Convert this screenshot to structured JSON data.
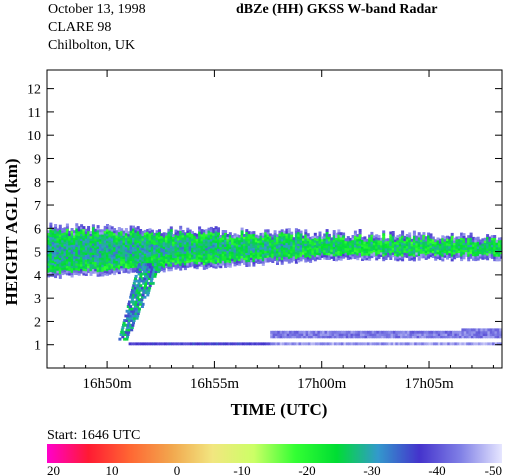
{
  "header": {
    "date": "October 13, 1998",
    "campaign": "CLARE 98",
    "location": "Chilbolton, UK",
    "title": "dBZe (HH)   GKSS  W-band Radar"
  },
  "colorbar": {
    "start_label": "Start: 1646 UTC",
    "tick_labels": [
      "20",
      "10",
      "0",
      "-10",
      "-20",
      "-30",
      "-40",
      "-50"
    ],
    "range": [
      20,
      -50
    ],
    "stops": [
      "#ff00cc",
      "#ff1a33",
      "#ff6633",
      "#f2a64d",
      "#f2e680",
      "#ccff66",
      "#33ff33",
      "#00dd33",
      "#3399cc",
      "#4433cc",
      "#8080e6",
      "#e6e6ff"
    ]
  },
  "chart_data": {
    "type": "heatmap",
    "title": "dBZe (HH)   GKSS  W-band Radar",
    "xlabel": "TIME (UTC)",
    "ylabel": "HEIGHT AGL (km)",
    "x_ticks": [
      "16h50m",
      "16h55m",
      "17h00m",
      "17h05m"
    ],
    "x_tick_minutes": [
      50,
      55,
      60,
      65
    ],
    "xlim_minutes_after_16h": [
      47.2,
      68.4
    ],
    "ylim": [
      0,
      12.8
    ],
    "y_ticks": [
      1,
      2,
      3,
      4,
      5,
      6,
      7,
      8,
      9,
      10,
      11,
      12
    ],
    "features": [
      {
        "name": "cloud layer",
        "time_start_minutes": 47.2,
        "time_end_minutes": 68.4,
        "top_km": [
          6.0,
          5.6
        ],
        "base_km": [
          3.9,
          4.7
        ],
        "dbz": -25
      },
      {
        "name": "fall streak",
        "time_start_minutes": 50.5,
        "time_end_minutes": 52.0,
        "top_km": 4.5,
        "base_km": 1.2,
        "dbz": -30
      },
      {
        "name": "low layer",
        "time_start_minutes": 51.0,
        "time_end_minutes": 68.4,
        "top_km": 1.5,
        "base_km": 1.0,
        "dbz": -40
      }
    ]
  }
}
